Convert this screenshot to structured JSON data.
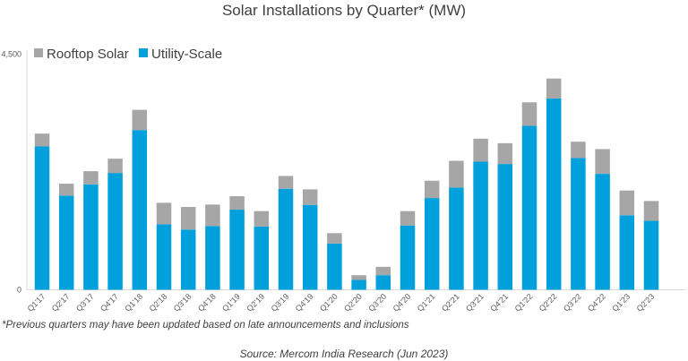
{
  "chart_data": {
    "type": "bar",
    "stacked": true,
    "title": "Solar Installations by Quarter* (MW)",
    "xlabel": "",
    "ylabel": "",
    "ylim": [
      0,
      4500
    ],
    "yticks": [
      "0",
      "4,500"
    ],
    "grid": false,
    "legend": "top-left",
    "categories": [
      "Q1'17",
      "Q2'17",
      "Q3'17",
      "Q4'17",
      "Q1'18",
      "Q2'18",
      "Q3'18",
      "Q4'18",
      "Q1'19",
      "Q2'19",
      "Q3'19",
      "Q4'19",
      "Q1'20",
      "Q2'20",
      "Q3'20",
      "Q4'20",
      "Q1'21",
      "Q2'21",
      "Q3'21",
      "Q4'21",
      "Q1'22",
      "Q2'22",
      "Q3'22",
      "Q4'22",
      "Q1'23",
      "Q2'23"
    ],
    "series": [
      {
        "name": "Utility-Scale",
        "color": "#00A0DC",
        "values": [
          2740,
          1800,
          2016,
          2233,
          3053,
          1253,
          1151,
          1219,
          1532,
          1208,
          1931,
          1623,
          883,
          188,
          279,
          1230,
          1754,
          1954,
          2449,
          2404,
          3133,
          3657,
          2518,
          2216,
          1424,
          1321
        ]
      },
      {
        "name": "Rooftop Solar",
        "color": "#A6A6A6",
        "values": [
          245,
          228,
          251,
          273,
          387,
          410,
          432,
          410,
          257,
          296,
          245,
          297,
          199,
          91,
          160,
          274,
          331,
          512,
          439,
          398,
          450,
          381,
          313,
          473,
          473,
          376
        ]
      }
    ]
  },
  "footnote": "*Previous quarters may have been updated based on late announcements and inclusions",
  "source": "Source: Mercom India Research (Jun 2023)"
}
